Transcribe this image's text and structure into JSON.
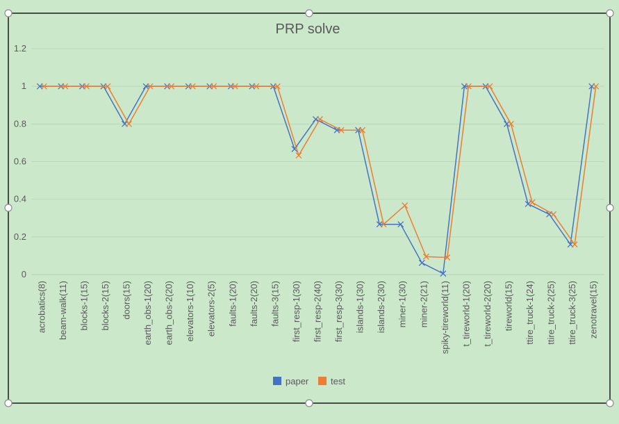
{
  "chart_data": {
    "type": "line",
    "title": "PRP solve",
    "xlabel": "",
    "ylabel": "",
    "ylim": [
      0,
      1.2
    ],
    "yticks": [
      "0",
      "0.2",
      "0.4",
      "0.6",
      "0.8",
      "1",
      "1.2"
    ],
    "grid": true,
    "legend_position": "bottom",
    "categories": [
      "acrobatics(8)",
      "beam-walk(11)",
      "blocks-1(15)",
      "blocks-2(15)",
      "doors(15)",
      "earth_obs-1(20)",
      "earth_obs-2(20)",
      "elevators-1(10)",
      "elevators-2(5)",
      "faults-1(20)",
      "faults-2(20)",
      "faults-3(15)",
      "first_resp-1(30)",
      "first_resp-2(40)",
      "first_resp-3(30)",
      "islands-1(30)",
      "islands-2(30)",
      "miner-1(30)",
      "miner-2(21)",
      "spiky-tireworld(11)",
      "t_tireworld-1(20)",
      "t_tireworld-2(20)",
      "tireworld(15)",
      "ttire_truck-1(24)",
      "ttire_truck-2(25)",
      "ttire_truck-3(25)",
      "zenotravel(15)"
    ],
    "series": [
      {
        "name": "paper",
        "color": "#4472c4",
        "values": [
          1,
          1,
          1,
          1,
          0.8,
          1,
          1,
          1,
          1,
          1,
          1,
          1,
          0.667,
          0.825,
          0.767,
          0.767,
          0.267,
          0.267,
          0.062,
          0.005,
          1,
          1,
          0.8,
          0.375,
          0.32,
          0.16,
          1
        ]
      },
      {
        "name": "test",
        "color": "#ed7d31",
        "values": [
          1,
          1,
          1,
          1,
          0.8,
          1,
          1,
          1,
          1,
          1,
          1,
          1,
          0.633,
          0.825,
          0.767,
          0.767,
          0.267,
          0.367,
          0.095,
          0.091,
          1,
          1,
          0.8,
          0.383,
          0.32,
          0.16,
          1
        ]
      }
    ]
  }
}
